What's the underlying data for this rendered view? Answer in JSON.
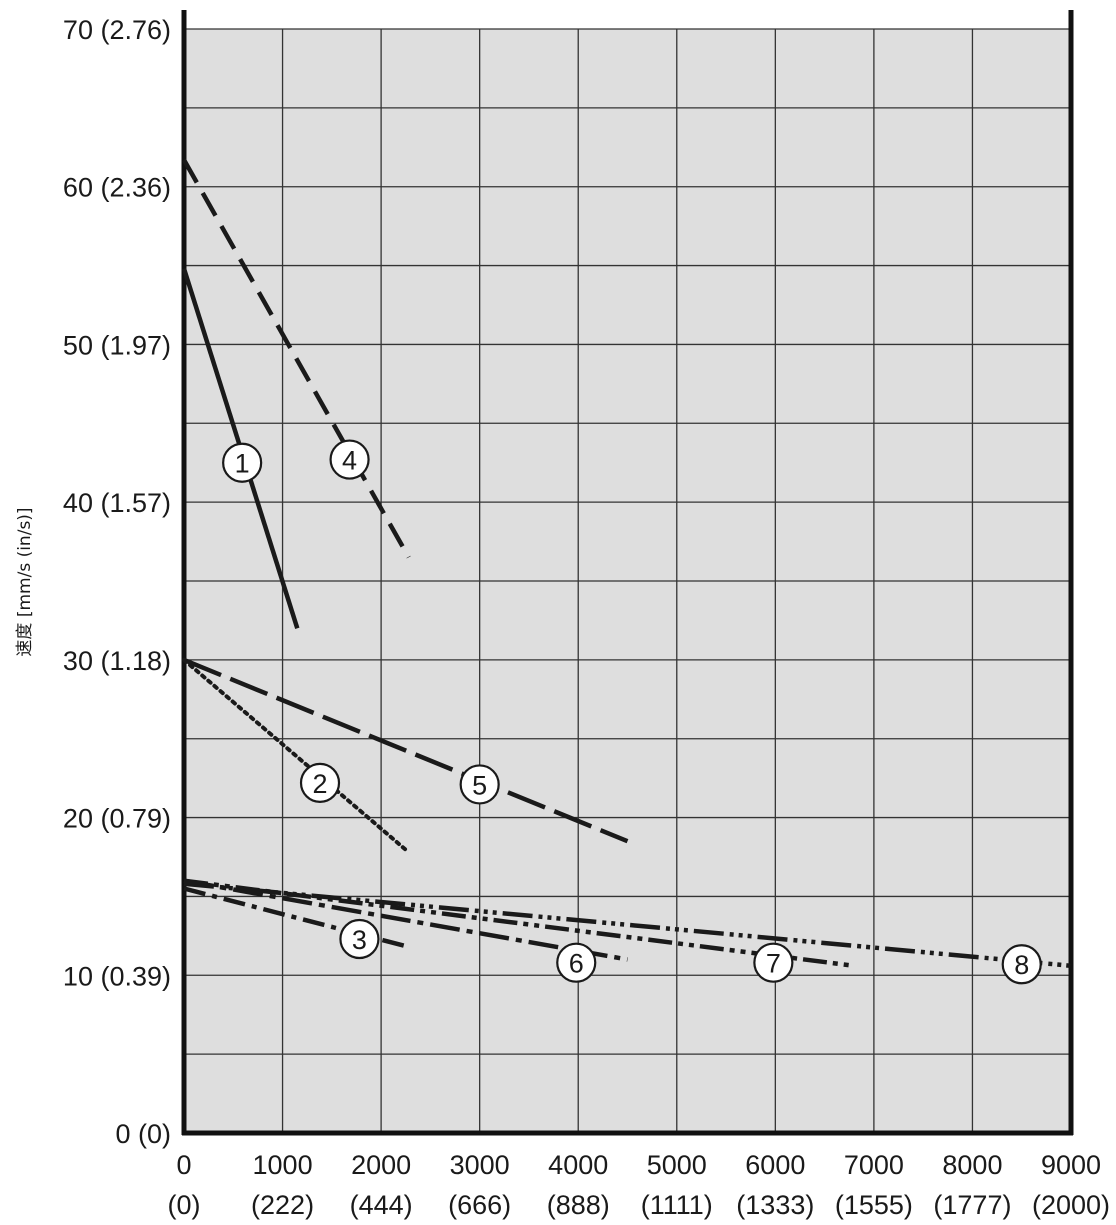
{
  "chart_data": {
    "type": "line",
    "ylabel": "速度 [mm/s (in/s)]",
    "xlabel": "",
    "xlim": [
      0,
      9000
    ],
    "ylim": [
      0,
      70
    ],
    "grid": true,
    "x_ticks": [
      {
        "value": 0,
        "label": "0",
        "sublabel": "(0)"
      },
      {
        "value": 1000,
        "label": "1000",
        "sublabel": "(222)"
      },
      {
        "value": 2000,
        "label": "2000",
        "sublabel": "(444)"
      },
      {
        "value": 3000,
        "label": "3000",
        "sublabel": "(666)"
      },
      {
        "value": 4000,
        "label": "4000",
        "sublabel": "(888)"
      },
      {
        "value": 5000,
        "label": "5000",
        "sublabel": "(1111)"
      },
      {
        "value": 6000,
        "label": "6000",
        "sublabel": "(1333)"
      },
      {
        "value": 7000,
        "label": "7000",
        "sublabel": "(1555)"
      },
      {
        "value": 8000,
        "label": "8000",
        "sublabel": "(1777)"
      },
      {
        "value": 9000,
        "label": "9000",
        "sublabel": "(2000)"
      }
    ],
    "y_ticks": [
      {
        "value": 0,
        "label": "0 (0)"
      },
      {
        "value": 10,
        "label": "10 (0.39)"
      },
      {
        "value": 20,
        "label": "20 (0.79)"
      },
      {
        "value": 30,
        "label": "30 (1.18)"
      },
      {
        "value": 40,
        "label": "40 (1.57)"
      },
      {
        "value": 50,
        "label": "50 (1.97)"
      },
      {
        "value": 60,
        "label": "60 (2.36)"
      },
      {
        "value": 70,
        "label": "70 (2.76)"
      }
    ],
    "series": [
      {
        "name": "1",
        "style": "solid",
        "x": [
          0,
          1150
        ],
        "y": [
          54.8,
          32
        ],
        "marker": {
          "x": 590,
          "y": 42.5
        }
      },
      {
        "name": "2",
        "style": "dotted",
        "x": [
          0,
          2280
        ],
        "y": [
          30,
          17.8
        ],
        "marker": {
          "x": 1380,
          "y": 22.2
        }
      },
      {
        "name": "3",
        "style": "dash-dot",
        "x": [
          0,
          2280
        ],
        "y": [
          15.5,
          11.8
        ],
        "marker": {
          "x": 1780,
          "y": 12.3
        }
      },
      {
        "name": "4",
        "style": "dashed",
        "x": [
          0,
          2280
        ],
        "y": [
          61.7,
          36.5
        ],
        "marker": {
          "x": 1680,
          "y": 42.7
        }
      },
      {
        "name": "5",
        "style": "long-dash",
        "x": [
          0,
          4500
        ],
        "y": [
          30,
          18.5
        ],
        "marker": {
          "x": 3000,
          "y": 22.1
        }
      },
      {
        "name": "6",
        "style": "long-dash-dot",
        "x": [
          0,
          4500
        ],
        "y": [
          16.0,
          11.0
        ],
        "marker": {
          "x": 3980,
          "y": 10.8
        }
      },
      {
        "name": "7",
        "style": "dash-dot-dot",
        "x": [
          0,
          6800
        ],
        "y": [
          16.0,
          10.6
        ],
        "marker": {
          "x": 5980,
          "y": 10.8
        }
      },
      {
        "name": "8",
        "style": "dash-dot-dot-dot",
        "x": [
          0,
          9000
        ],
        "y": [
          15.8,
          10.6
        ],
        "marker": {
          "x": 8500,
          "y": 10.7
        }
      }
    ]
  },
  "colors": {
    "plot_background": "#dedede",
    "grid": "#333333",
    "axis": "#111111",
    "series": "#1a1a1a",
    "marker_fill": "#ffffff"
  }
}
